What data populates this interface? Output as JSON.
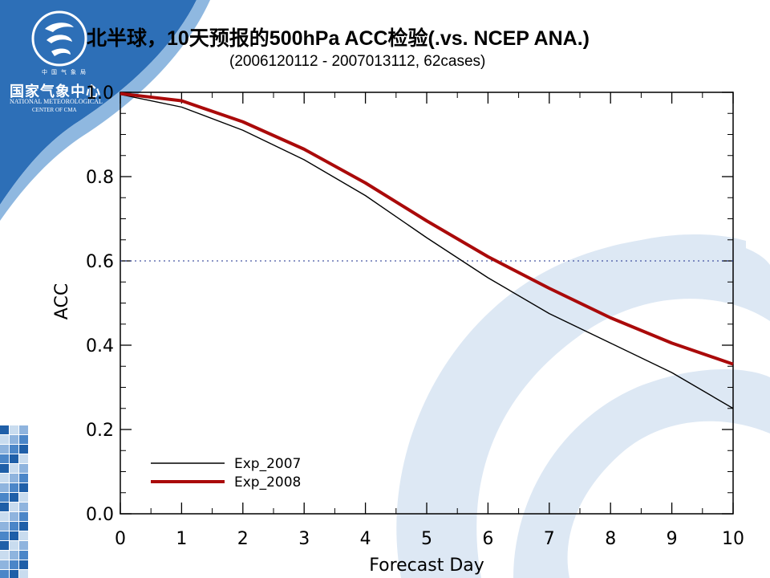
{
  "slide": {
    "title": "北半球，10天预报的500hPa ACC检验(.vs. NCEP ANA.)",
    "subtitle": "(2006120112 - 2007013112, 62cases)"
  },
  "logo": {
    "org_small": "中国气象局",
    "org_cn": "国家气象中心",
    "org_en_line1": "NATIONAL METEOROLOGICAL",
    "org_en_line2": "CENTER OF CMA",
    "icon": "cma-swirl-logo-icon"
  },
  "colors": {
    "logo_blue": "#2d6fb7",
    "watermark_blue": "#dde8f4",
    "exp2007": "#000000",
    "exp2008": "#aa0a0a",
    "ref_line": "#1a2e8c"
  },
  "chart_data": {
    "type": "line",
    "xlabel": "Forecast Day",
    "ylabel": "ACC",
    "xlim": [
      0,
      10
    ],
    "ylim": [
      0.0,
      1.0
    ],
    "xticks": [
      "0",
      "1",
      "2",
      "3",
      "4",
      "5",
      "6",
      "7",
      "8",
      "9",
      "10"
    ],
    "yticks": [
      "0.0",
      "0.2",
      "0.4",
      "0.6",
      "0.8",
      "1.0"
    ],
    "grid": false,
    "reference_line": {
      "y": 0.6,
      "style": "dotted"
    },
    "legend_position": "bottom-left",
    "x": [
      0,
      1,
      2,
      3,
      4,
      5,
      6,
      7,
      8,
      9,
      10
    ],
    "series": [
      {
        "name": "Exp_2007",
        "values": [
          0.995,
          0.965,
          0.91,
          0.84,
          0.755,
          0.655,
          0.56,
          0.475,
          0.405,
          0.335,
          0.25
        ]
      },
      {
        "name": "Exp_2008",
        "values": [
          0.997,
          0.98,
          0.93,
          0.865,
          0.785,
          0.695,
          0.61,
          0.535,
          0.465,
          0.405,
          0.355
        ]
      }
    ]
  }
}
